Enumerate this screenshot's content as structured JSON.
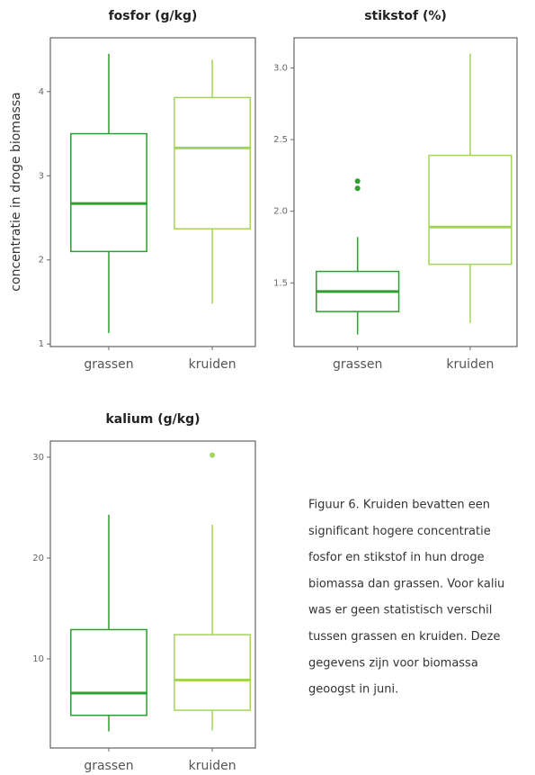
{
  "chart_data": [
    {
      "type": "box",
      "title": "fosfor (g/kg)",
      "y_label": "concentratie in droge biomassa",
      "categories": [
        "grassen",
        "kruiden"
      ],
      "colors": [
        "#2e9e2e",
        "#a3d45a"
      ],
      "min": [
        1.13,
        1.48
      ],
      "q1": [
        2.1,
        2.37
      ],
      "median": [
        2.67,
        3.33
      ],
      "q3": [
        3.5,
        3.93
      ],
      "max": [
        4.45,
        4.38
      ],
      "outliers": [
        [],
        []
      ],
      "ylim": [
        0.97,
        4.64
      ],
      "yticks": [
        1,
        2,
        3,
        4
      ]
    },
    {
      "type": "box",
      "title": "stikstof (%)",
      "categories": [
        "grassen",
        "kruiden"
      ],
      "colors": [
        "#2e9e2e",
        "#a3d45a"
      ],
      "min": [
        1.14,
        1.22
      ],
      "q1": [
        1.3,
        1.63
      ],
      "median": [
        1.44,
        1.89
      ],
      "q3": [
        1.58,
        2.39
      ],
      "max": [
        1.82,
        3.1
      ],
      "outliers": [
        [
          2.21,
          2.16
        ],
        []
      ],
      "ylim": [
        1.056,
        3.21
      ],
      "yticks": [
        1.5,
        {
          "value": 2,
          "label": "2.0"
        },
        2.5,
        {
          "value": 3,
          "label": "3.0"
        }
      ]
    },
    {
      "type": "box",
      "title": "kalium (g/kg)",
      "categories": [
        "grassen",
        "kruiden"
      ],
      "colors": [
        "#2e9e2e",
        "#a3d45a"
      ],
      "min": [
        2.8,
        2.9
      ],
      "q1": [
        4.4,
        4.9
      ],
      "median": [
        6.6,
        7.9
      ],
      "q3": [
        12.9,
        12.4
      ],
      "max": [
        24.3,
        23.3
      ],
      "outliers": [
        [],
        [
          30.2
        ]
      ],
      "ylim": [
        1.16,
        31.6
      ],
      "yticks": [
        10,
        20,
        30
      ]
    }
  ],
  "caption": {
    "lines": [
      "Figuur 6. Kruiden bevatten een",
      "significant hogere concentratie",
      "fosfor en stikstof in hun droge",
      "biomassa dan grassen. Voor kaliu",
      "was er geen statistisch verschil",
      "tussen grassen en kruiden. Deze",
      "gegevens zijn voor biomassa",
      "geoogst in juni."
    ]
  }
}
